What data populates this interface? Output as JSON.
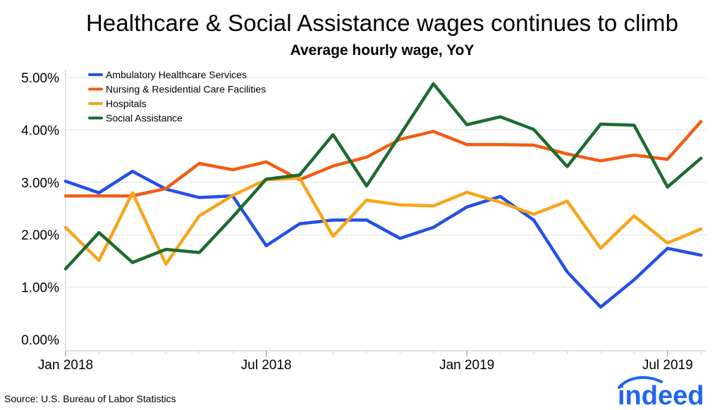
{
  "header": {
    "title": "Healthcare & Social Assistance wages continues to climb",
    "subtitle": "Average hourly wage, YoY"
  },
  "footer": {
    "source": "Source: U.S. Bureau of Labor Statistics",
    "logo_text": "indeed"
  },
  "colors": {
    "ambulatory": "#2450e6",
    "nursing": "#f25c14",
    "hospitals": "#f7a51c",
    "social": "#1d6b30",
    "brand": "#2164f3"
  },
  "chart_data": {
    "type": "line",
    "title": "Healthcare & Social Assistance wages continues to climb",
    "subtitle": "Average hourly wage, YoY",
    "xlabel": "",
    "ylabel": "",
    "x": [
      "2018-01",
      "2018-02",
      "2018-03",
      "2018-04",
      "2018-05",
      "2018-06",
      "2018-07",
      "2018-08",
      "2018-09",
      "2018-10",
      "2018-11",
      "2018-12",
      "2019-01",
      "2019-02",
      "2019-03",
      "2019-04",
      "2019-05",
      "2019-06",
      "2019-07",
      "2019-08"
    ],
    "x_tick_labels": [
      "Jan 2018",
      "Jul 2018",
      "Jan 2019",
      "Jul 2019"
    ],
    "x_tick_positions": [
      "2018-01",
      "2018-07",
      "2019-01",
      "2019-07"
    ],
    "ylim": [
      0,
      5
    ],
    "y_ticks": [
      0,
      1,
      2,
      3,
      4,
      5
    ],
    "y_tick_labels": [
      "0.00%",
      "1.00%",
      "2.00%",
      "3.00%",
      "4.00%",
      "5.00%"
    ],
    "grid": "horizontal",
    "legend_position": "top-left",
    "series": [
      {
        "name": "Ambulatory Healthcare Services",
        "color": "#2450e6",
        "values": [
          3.02,
          2.8,
          3.21,
          2.87,
          2.71,
          2.74,
          1.79,
          2.21,
          2.28,
          2.28,
          1.93,
          2.14,
          2.53,
          2.73,
          2.28,
          1.29,
          0.62,
          1.14,
          1.74,
          1.61
        ]
      },
      {
        "name": "Nursing & Residential Care Facilities",
        "color": "#f25c14",
        "values": [
          2.74,
          2.74,
          2.74,
          2.88,
          3.36,
          3.24,
          3.39,
          3.05,
          3.31,
          3.48,
          3.82,
          3.97,
          3.72,
          3.72,
          3.71,
          3.54,
          3.41,
          3.52,
          3.44,
          4.16
        ]
      },
      {
        "name": "Hospitals",
        "color": "#f7a51c",
        "values": [
          2.14,
          1.51,
          2.8,
          1.44,
          2.36,
          2.75,
          3.05,
          3.08,
          1.97,
          2.66,
          2.57,
          2.55,
          2.81,
          2.62,
          2.39,
          2.64,
          1.74,
          2.36,
          1.84,
          2.11
        ]
      },
      {
        "name": "Social Assistance",
        "color": "#1d6b30",
        "values": [
          1.35,
          2.04,
          1.47,
          1.72,
          1.66,
          2.34,
          3.06,
          3.14,
          3.91,
          2.93,
          3.9,
          4.88,
          4.1,
          4.25,
          4.01,
          3.3,
          4.11,
          4.09,
          2.91,
          3.46
        ]
      }
    ]
  }
}
